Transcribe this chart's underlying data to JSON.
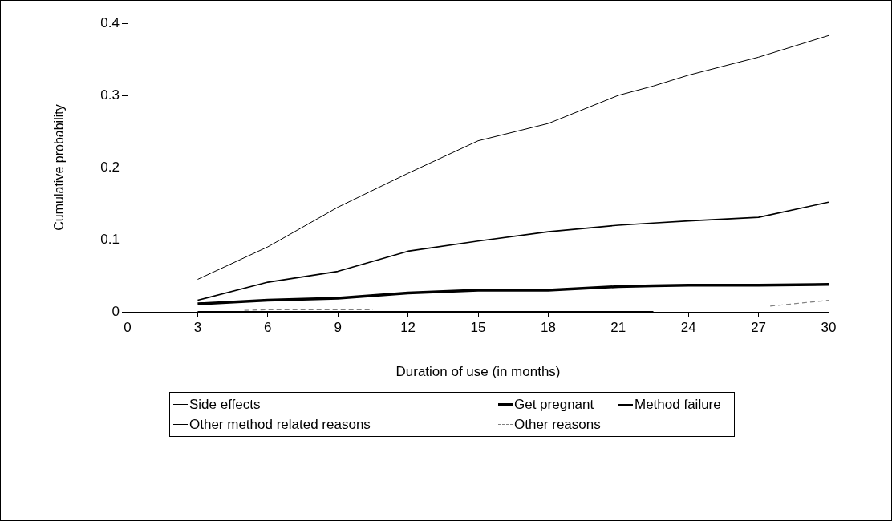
{
  "chart_data": {
    "type": "line",
    "xlabel": "Duration of use (in months)",
    "ylabel": "Cumulative probability",
    "x": [
      3,
      6,
      9,
      12,
      15,
      18,
      21,
      22.5,
      24,
      27,
      30
    ],
    "xlim": [
      0,
      30
    ],
    "xticks": [
      0,
      3,
      6,
      9,
      12,
      15,
      18,
      21,
      24,
      27,
      30
    ],
    "ylim": [
      0,
      0.4
    ],
    "yticks": [
      0,
      0.1,
      0.2,
      0.3,
      0.4
    ],
    "grid": false,
    "legend": "bottom",
    "marker": "none",
    "series": [
      {
        "name": "Side effects",
        "color": "#000000",
        "values": [
          0.045,
          0.09,
          0.145,
          0.192,
          0.237,
          0.261,
          0.3,
          0.313,
          0.328,
          0.353,
          0.383
        ]
      },
      {
        "name": "Get pregnant",
        "color": "#000000",
        "values": [
          0.011,
          0.016,
          0.019,
          0.026,
          0.03,
          0.03,
          0.035,
          0.036,
          0.037,
          0.037,
          0.038
        ]
      },
      {
        "name": "Method failure",
        "color": "#000000",
        "values": [
          0,
          0,
          0,
          0,
          0,
          0,
          0,
          0,
          null,
          null,
          null
        ]
      },
      {
        "name": "Other method related reasons",
        "color": "#000000",
        "values": [
          0.016,
          0.041,
          0.056,
          0.084,
          0.098,
          0.111,
          0.12,
          0.123,
          0.126,
          0.131,
          0.152
        ]
      },
      {
        "name": "Other reasons",
        "color": "#808080",
        "line_style": "dashed",
        "x": [
          5,
          6,
          9,
          10.5,
          12,
          27.5,
          30
        ],
        "values": [
          0.002,
          0.003,
          0.003,
          0.003,
          null,
          0.008,
          0.016
        ]
      }
    ]
  }
}
